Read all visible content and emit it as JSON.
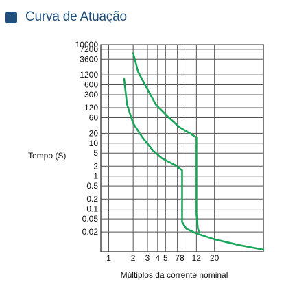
{
  "header": {
    "title": "Curva de Atuação",
    "accent_color": "#1f4f7c"
  },
  "chart_data": {
    "type": "line",
    "title": "",
    "xlabel": "Múltiplos da corrente nominal",
    "ylabel": "Tempo (S)",
    "x_scale": "log",
    "y_scale": "log",
    "xlim": [
      0.8,
      80
    ],
    "ylim": [
      0.005,
      10000
    ],
    "grid": true,
    "x_ticks": [
      {
        "value": 1,
        "label": "1"
      },
      {
        "value": 2,
        "label": "2"
      },
      {
        "value": 3,
        "label": "3"
      },
      {
        "value": 4,
        "label": "4"
      },
      {
        "value": 5,
        "label": "5"
      },
      {
        "value": 7,
        "label": "7"
      },
      {
        "value": 8,
        "label": "8"
      },
      {
        "value": 12,
        "label": "12"
      },
      {
        "value": 20,
        "label": "20"
      }
    ],
    "y_ticks": [
      {
        "value": 10000,
        "label": "10000"
      },
      {
        "value": 7200,
        "label": "7200"
      },
      {
        "value": 3600,
        "label": "3600"
      },
      {
        "value": 1200,
        "label": "1200"
      },
      {
        "value": 600,
        "label": "600"
      },
      {
        "value": 300,
        "label": "300"
      },
      {
        "value": 120,
        "label": "120"
      },
      {
        "value": 60,
        "label": "60"
      },
      {
        "value": 20,
        "label": "20"
      },
      {
        "value": 10,
        "label": "10"
      },
      {
        "value": 5,
        "label": "5"
      },
      {
        "value": 2,
        "label": "2"
      },
      {
        "value": 1,
        "label": "1"
      },
      {
        "value": 0.5,
        "label": "0.5"
      },
      {
        "value": 0.2,
        "label": "0.2"
      },
      {
        "value": 0.1,
        "label": "0.1"
      },
      {
        "value": 0.05,
        "label": "0.05"
      },
      {
        "value": 0.02,
        "label": "0.02"
      }
    ],
    "series_color": "#1aa65a",
    "series": [
      {
        "points": [
          [
            1.55,
            900
          ],
          [
            1.68,
            150
          ],
          [
            2.0,
            40
          ],
          [
            2.6,
            15
          ],
          [
            3.5,
            6
          ],
          [
            4.5,
            3.5
          ],
          [
            6.5,
            2.2
          ],
          [
            8,
            1.5
          ],
          [
            8,
            0.04
          ],
          [
            9,
            0.025
          ],
          [
            12,
            0.018
          ],
          [
            20,
            0.012
          ],
          [
            40,
            0.008
          ],
          [
            80,
            0.0058
          ]
        ]
      },
      {
        "points": [
          [
            2.0,
            5500
          ],
          [
            2.3,
            1500
          ],
          [
            2.8,
            600
          ],
          [
            3.8,
            150
          ],
          [
            5.5,
            60
          ],
          [
            7.5,
            30
          ],
          [
            10,
            20
          ],
          [
            12,
            15
          ],
          [
            12,
            0.07
          ],
          [
            12.5,
            0.025
          ],
          [
            13,
            0.02
          ]
        ]
      }
    ]
  }
}
